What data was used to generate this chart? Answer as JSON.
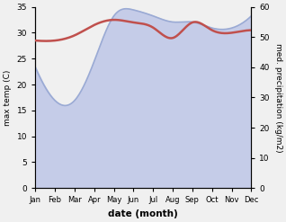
{
  "months": [
    "Jan",
    "Feb",
    "Mar",
    "Apr",
    "May",
    "Jun",
    "Jul",
    "Aug",
    "Sep",
    "Oct",
    "Nov",
    "Dec"
  ],
  "x": [
    0,
    1,
    2,
    3,
    4,
    5,
    6,
    7,
    8,
    9,
    10,
    11
  ],
  "temperature": [
    28.5,
    28.5,
    29.5,
    31.5,
    32.5,
    32.0,
    31.0,
    29.0,
    32.0,
    30.5,
    30.0,
    30.5
  ],
  "precipitation_mm": [
    40,
    29,
    29,
    42,
    57,
    59,
    57,
    55,
    55,
    53,
    53,
    57
  ],
  "temp_color": "#c0504d",
  "precip_fill_color": "#c5cce8",
  "precip_edge_color": "#9aaad4",
  "ylim_temp": [
    0,
    35
  ],
  "ylim_precip": [
    0,
    60
  ],
  "ylabel_left": "max temp (C)",
  "ylabel_right": "med. precipitation (kg/m2)",
  "xlabel": "date (month)",
  "bg_color": "#f0f0f0",
  "plot_bg_color": "#ffffff",
  "temp_linewidth": 1.8,
  "precip_linewidth": 1.2,
  "yticks_left": [
    0,
    5,
    10,
    15,
    20,
    25,
    30,
    35
  ],
  "yticks_right": [
    0,
    10,
    20,
    30,
    40,
    50,
    60
  ]
}
